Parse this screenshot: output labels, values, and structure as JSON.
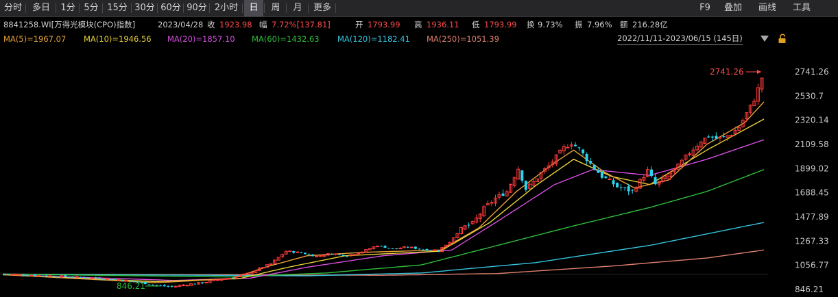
{
  "toolbar": {
    "periods": [
      "分时",
      "多日",
      "1分",
      "5分",
      "15分",
      "30分",
      "60分",
      "90分",
      "2小时",
      "日",
      "周",
      "月",
      "更多"
    ],
    "active_period": "日",
    "right_items": [
      "F9",
      "叠加",
      "画线",
      "工具"
    ]
  },
  "info": {
    "code_name": "8841258.WI[万得光模块(CPO)指数]",
    "date": "2023/04/28",
    "close_label": "收",
    "close": "1923.98",
    "change_label": "幅",
    "change": "7.72%[137.81]",
    "open_label": "开",
    "open": "1793.99",
    "high_label": "高",
    "high": "1936.11",
    "low_label": "低",
    "low": "1793.99",
    "turnover_label": "换",
    "turnover": "9.73%",
    "amplitude_label": "振",
    "amplitude": "7.96%",
    "amount_label": "额",
    "amount": "216.28亿"
  },
  "ma": [
    {
      "label": "MA(5)=1967.07",
      "color": "#e8a33a"
    },
    {
      "label": "MA(10)=1946.56",
      "color": "#e8d23a"
    },
    {
      "label": "MA(20)=1857.10",
      "color": "#d64fe0"
    },
    {
      "label": "MA(60)=1432.63",
      "color": "#2fbf3a"
    },
    {
      "label": "MA(120)=1182.41",
      "color": "#36c6e0"
    },
    {
      "label": "MA(250)=1051.39",
      "color": "#e0806e"
    }
  ],
  "range": {
    "text": "2022/11/11-2023/06/15 (145日)",
    "dropdown_icon": "triangle-down-icon",
    "lock_icon": "lock-icon"
  },
  "chart_data": {
    "type": "candlestick",
    "y_ticks": [
      "2741.26",
      "2530.7",
      "2320.14",
      "2109.58",
      "1899.02",
      "1688.45",
      "1477.89",
      "1267.33",
      "1056.77",
      "846.21"
    ],
    "ylim": [
      846.21,
      2741.26
    ],
    "max_label": "2741.26",
    "min_label": "846.21",
    "up_color": "#ff3b3b",
    "down_color": "#2ad4ee",
    "close_path": [
      [
        0,
        980
      ],
      [
        6,
        972
      ],
      [
        12,
        965
      ],
      [
        18,
        955
      ],
      [
        24,
        945
      ],
      [
        30,
        932
      ],
      [
        36,
        905
      ],
      [
        40,
        880
      ],
      [
        44,
        870
      ],
      [
        48,
        890
      ],
      [
        52,
        905
      ],
      [
        56,
        930
      ],
      [
        60,
        950
      ],
      [
        64,
        985
      ],
      [
        70,
        1070
      ],
      [
        74,
        1180
      ],
      [
        78,
        1165
      ],
      [
        82,
        1135
      ],
      [
        86,
        1160
      ],
      [
        90,
        1140
      ],
      [
        94,
        1175
      ],
      [
        98,
        1230
      ],
      [
        102,
        1200
      ],
      [
        106,
        1215
      ],
      [
        110,
        1195
      ],
      [
        114,
        1185
      ],
      [
        117,
        1260
      ],
      [
        120,
        1380
      ],
      [
        123,
        1420
      ],
      [
        126,
        1550
      ],
      [
        129,
        1640
      ],
      [
        132,
        1700
      ],
      [
        135,
        1900
      ],
      [
        137,
        1720
      ],
      [
        139,
        1780
      ],
      [
        141,
        1860
      ],
      [
        143,
        1920
      ],
      [
        145,
        2000
      ],
      [
        147,
        2080
      ],
      [
        149,
        2120
      ],
      [
        151,
        2070
      ],
      [
        153,
        1980
      ],
      [
        155,
        1900
      ],
      [
        157,
        1830
      ],
      [
        159,
        1790
      ],
      [
        161,
        1740
      ],
      [
        163,
        1720
      ],
      [
        165,
        1700
      ],
      [
        167,
        1790
      ],
      [
        169,
        1880
      ],
      [
        171,
        1760
      ],
      [
        173,
        1800
      ],
      [
        175,
        1860
      ],
      [
        177,
        1920
      ],
      [
        179,
        2000
      ],
      [
        181,
        2070
      ],
      [
        183,
        2140
      ],
      [
        185,
        2180
      ],
      [
        187,
        2160
      ],
      [
        189,
        2170
      ],
      [
        191,
        2200
      ],
      [
        193,
        2260
      ],
      [
        195,
        2380
      ],
      [
        197,
        2500
      ],
      [
        199,
        2690
      ]
    ],
    "ma_paths": {
      "MA(5)": [
        [
          0,
          975
        ],
        [
          40,
          905
        ],
        [
          60,
          940
        ],
        [
          70,
          1050
        ],
        [
          80,
          1140
        ],
        [
          95,
          1170
        ],
        [
          115,
          1190
        ],
        [
          125,
          1380
        ],
        [
          135,
          1700
        ],
        [
          145,
          1950
        ],
        [
          150,
          2060
        ],
        [
          158,
          1870
        ],
        [
          166,
          1730
        ],
        [
          175,
          1800
        ],
        [
          185,
          2110
        ],
        [
          195,
          2300
        ],
        [
          200,
          2480
        ]
      ],
      "MA(10)": [
        [
          0,
          975
        ],
        [
          40,
          915
        ],
        [
          62,
          940
        ],
        [
          75,
          1040
        ],
        [
          90,
          1140
        ],
        [
          115,
          1180
        ],
        [
          128,
          1430
        ],
        [
          140,
          1750
        ],
        [
          150,
          1980
        ],
        [
          160,
          1830
        ],
        [
          170,
          1760
        ],
        [
          185,
          2060
        ],
        [
          200,
          2330
        ]
      ],
      "MA(20)": [
        [
          0,
          975
        ],
        [
          45,
          925
        ],
        [
          65,
          945
        ],
        [
          80,
          1040
        ],
        [
          100,
          1140
        ],
        [
          118,
          1190
        ],
        [
          130,
          1440
        ],
        [
          145,
          1760
        ],
        [
          155,
          1890
        ],
        [
          170,
          1840
        ],
        [
          185,
          1980
        ],
        [
          200,
          2150
        ]
      ],
      "MA(60)": [
        [
          0,
          980
        ],
        [
          60,
          955
        ],
        [
          85,
          990
        ],
        [
          110,
          1060
        ],
        [
          130,
          1230
        ],
        [
          150,
          1400
        ],
        [
          170,
          1560
        ],
        [
          185,
          1700
        ],
        [
          200,
          1890
        ]
      ],
      "MA(120)": [
        [
          0,
          980
        ],
        [
          80,
          965
        ],
        [
          110,
          990
        ],
        [
          140,
          1080
        ],
        [
          170,
          1230
        ],
        [
          200,
          1430
        ]
      ],
      "MA(250)": [
        [
          0,
          980
        ],
        [
          100,
          970
        ],
        [
          130,
          985
        ],
        [
          160,
          1050
        ],
        [
          185,
          1120
        ],
        [
          200,
          1190
        ]
      ]
    }
  }
}
